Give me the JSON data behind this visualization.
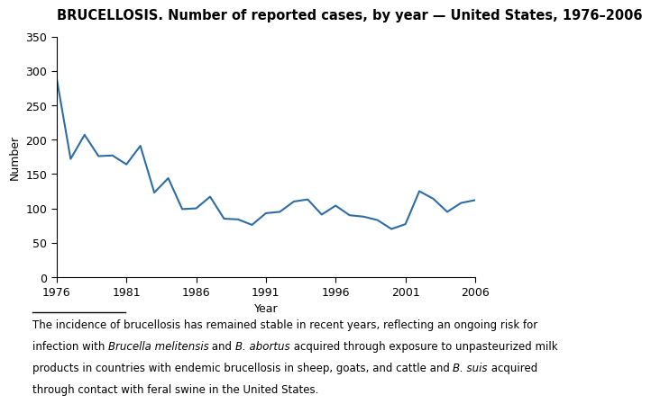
{
  "title": "BRUCELLOSIS. Number of reported cases, by year — United States, 1976–2006",
  "xlabel": "Year",
  "ylabel": "Number",
  "line_color": "#2e6da4",
  "years": [
    1976,
    1977,
    1978,
    1979,
    1980,
    1981,
    1982,
    1983,
    1984,
    1985,
    1986,
    1987,
    1988,
    1989,
    1990,
    1991,
    1992,
    1993,
    1994,
    1995,
    1996,
    1997,
    1998,
    1999,
    2000,
    2001,
    2002,
    2003,
    2004,
    2005,
    2006
  ],
  "values": [
    289,
    172,
    207,
    176,
    177,
    164,
    191,
    123,
    144,
    99,
    100,
    117,
    85,
    84,
    76,
    93,
    95,
    110,
    113,
    91,
    104,
    90,
    88,
    83,
    70,
    77,
    125,
    114,
    95,
    108,
    112
  ],
  "ylim": [
    0,
    350
  ],
  "yticks": [
    0,
    50,
    100,
    150,
    200,
    250,
    300,
    350
  ],
  "xticks": [
    1976,
    1981,
    1986,
    1991,
    1996,
    2001,
    2006
  ],
  "bg_color": "#ffffff",
  "title_fontsize": 10.5,
  "axis_label_fontsize": 9,
  "tick_fontsize": 9,
  "footnote_fontsize": 8.5
}
